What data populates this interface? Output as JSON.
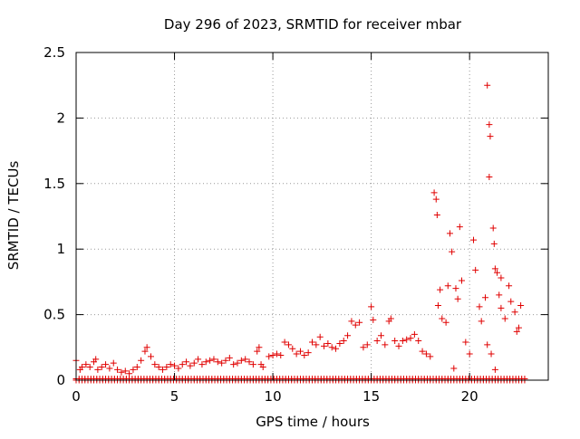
{
  "chart_data": {
    "type": "scatter",
    "title": "Day 296 of 2023, SRMTID for receiver mbar",
    "xlabel": "GPS time / hours",
    "ylabel": "SRMTID / TECUs",
    "xlim": [
      0,
      24
    ],
    "ylim": [
      0,
      2.5
    ],
    "x_ticks": [
      0,
      5,
      10,
      15,
      20
    ],
    "x_tick_labels": [
      "0",
      "5",
      "10",
      "15",
      "20"
    ],
    "y_ticks": [
      0,
      0.5,
      1,
      1.5,
      2,
      2.5
    ],
    "y_tick_labels": [
      "0",
      "0.5",
      "1",
      "1.5",
      "2",
      "2.5"
    ],
    "grid": true,
    "marker": "+",
    "color": "#e00000",
    "series": [
      {
        "name": "SRMTID",
        "points": [
          [
            0.0,
            0.15
          ],
          [
            0.2,
            0.08
          ],
          [
            0.3,
            0.1
          ],
          [
            0.5,
            0.12
          ],
          [
            0.7,
            0.1
          ],
          [
            0.9,
            0.14
          ],
          [
            1.0,
            0.16
          ],
          [
            1.1,
            0.08
          ],
          [
            1.3,
            0.1
          ],
          [
            1.5,
            0.12
          ],
          [
            1.7,
            0.09
          ],
          [
            1.9,
            0.13
          ],
          [
            2.1,
            0.08
          ],
          [
            2.3,
            0.06
          ],
          [
            2.5,
            0.07
          ],
          [
            2.7,
            0.05
          ],
          [
            2.9,
            0.08
          ],
          [
            3.1,
            0.1
          ],
          [
            3.3,
            0.15
          ],
          [
            3.5,
            0.22
          ],
          [
            3.6,
            0.25
          ],
          [
            3.8,
            0.18
          ],
          [
            4.0,
            0.12
          ],
          [
            4.2,
            0.1
          ],
          [
            4.4,
            0.08
          ],
          [
            4.6,
            0.1
          ],
          [
            4.8,
            0.12
          ],
          [
            5.0,
            0.11
          ],
          [
            5.2,
            0.09
          ],
          [
            5.4,
            0.12
          ],
          [
            5.6,
            0.14
          ],
          [
            5.8,
            0.11
          ],
          [
            6.0,
            0.13
          ],
          [
            6.2,
            0.16
          ],
          [
            6.4,
            0.12
          ],
          [
            6.6,
            0.14
          ],
          [
            6.8,
            0.15
          ],
          [
            7.0,
            0.16
          ],
          [
            7.2,
            0.14
          ],
          [
            7.4,
            0.13
          ],
          [
            7.6,
            0.15
          ],
          [
            7.8,
            0.17
          ],
          [
            8.0,
            0.12
          ],
          [
            8.2,
            0.13
          ],
          [
            8.4,
            0.15
          ],
          [
            8.6,
            0.16
          ],
          [
            8.8,
            0.14
          ],
          [
            9.0,
            0.12
          ],
          [
            9.2,
            0.22
          ],
          [
            9.3,
            0.25
          ],
          [
            9.4,
            0.12
          ],
          [
            9.5,
            0.1
          ],
          [
            9.8,
            0.18
          ],
          [
            10.0,
            0.19
          ],
          [
            10.2,
            0.2
          ],
          [
            10.4,
            0.19
          ],
          [
            10.6,
            0.29
          ],
          [
            10.8,
            0.27
          ],
          [
            11.0,
            0.24
          ],
          [
            11.2,
            0.2
          ],
          [
            11.4,
            0.22
          ],
          [
            11.6,
            0.19
          ],
          [
            11.8,
            0.21
          ],
          [
            12.0,
            0.29
          ],
          [
            12.2,
            0.27
          ],
          [
            12.4,
            0.33
          ],
          [
            12.6,
            0.26
          ],
          [
            12.8,
            0.28
          ],
          [
            13.0,
            0.25
          ],
          [
            13.2,
            0.24
          ],
          [
            13.4,
            0.28
          ],
          [
            13.6,
            0.3
          ],
          [
            13.8,
            0.34
          ],
          [
            14.0,
            0.45
          ],
          [
            14.2,
            0.42
          ],
          [
            14.4,
            0.44
          ],
          [
            14.6,
            0.25
          ],
          [
            14.8,
            0.27
          ],
          [
            15.0,
            0.56
          ],
          [
            15.1,
            0.46
          ],
          [
            15.3,
            0.3
          ],
          [
            15.5,
            0.34
          ],
          [
            15.7,
            0.27
          ],
          [
            15.9,
            0.45
          ],
          [
            16.0,
            0.47
          ],
          [
            16.2,
            0.3
          ],
          [
            16.4,
            0.26
          ],
          [
            16.6,
            0.3
          ],
          [
            16.8,
            0.31
          ],
          [
            17.0,
            0.32
          ],
          [
            17.2,
            0.35
          ],
          [
            17.4,
            0.3
          ],
          [
            17.6,
            0.22
          ],
          [
            17.8,
            0.2
          ],
          [
            18.0,
            0.18
          ],
          [
            18.2,
            1.43
          ],
          [
            18.3,
            1.38
          ],
          [
            18.35,
            1.26
          ],
          [
            18.5,
            0.69
          ],
          [
            18.6,
            0.47
          ],
          [
            18.8,
            0.44
          ],
          [
            18.9,
            0.72
          ],
          [
            19.0,
            1.12
          ],
          [
            19.1,
            0.98
          ],
          [
            19.3,
            0.7
          ],
          [
            19.4,
            0.62
          ],
          [
            19.5,
            1.17
          ],
          [
            19.6,
            0.76
          ],
          [
            19.8,
            0.29
          ],
          [
            20.0,
            0.2
          ],
          [
            20.2,
            1.07
          ],
          [
            20.3,
            0.84
          ],
          [
            20.5,
            0.56
          ],
          [
            20.6,
            0.45
          ],
          [
            20.8,
            0.63
          ],
          [
            20.9,
            2.25
          ],
          [
            21.0,
            1.95
          ],
          [
            21.05,
            1.86
          ],
          [
            21.0,
            1.55
          ],
          [
            21.2,
            1.16
          ],
          [
            21.25,
            1.04
          ],
          [
            21.3,
            0.85
          ],
          [
            21.4,
            0.82
          ],
          [
            21.5,
            0.65
          ],
          [
            21.6,
            0.78
          ],
          [
            21.8,
            0.47
          ],
          [
            22.0,
            0.72
          ],
          [
            22.1,
            0.6
          ],
          [
            22.3,
            0.52
          ],
          [
            22.5,
            0.4
          ],
          [
            22.6,
            0.57
          ],
          [
            20.9,
            0.27
          ],
          [
            21.1,
            0.2
          ],
          [
            21.3,
            0.08
          ],
          [
            18.4,
            0.57
          ],
          [
            19.2,
            0.09
          ],
          [
            21.6,
            0.55
          ],
          [
            22.4,
            0.37
          ]
        ]
      }
    ],
    "zero_rows": [
      0.0,
      0.01
    ]
  }
}
